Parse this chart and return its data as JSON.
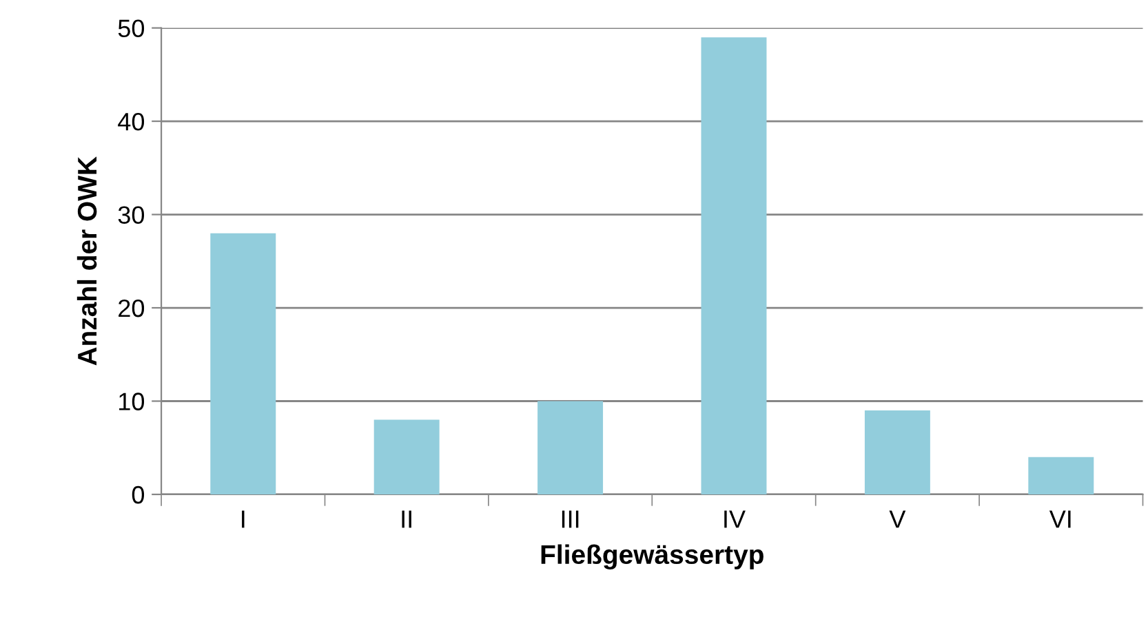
{
  "chart_data": {
    "type": "bar",
    "xlabel": "Fließgewässertyp",
    "ylabel": "Anzahl der OWK",
    "categories": [
      "I",
      "II",
      "III",
      "IV",
      "V",
      "VI"
    ],
    "values": [
      28,
      8,
      10,
      49,
      9,
      4
    ],
    "color": "#92cddc",
    "ylim": [
      0,
      50
    ],
    "yticks": [
      0,
      10,
      20,
      30,
      40,
      50
    ],
    "grid": "y",
    "legend": false
  }
}
